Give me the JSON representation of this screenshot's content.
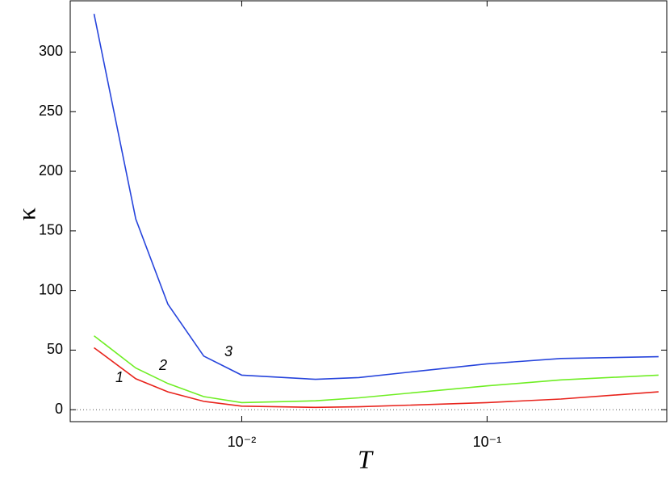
{
  "chart_data": {
    "type": "line",
    "x_label": "T",
    "y_label": "κ",
    "xscale": "log",
    "xlim": [
      0.002,
      0.54
    ],
    "ylim": [
      -10,
      343
    ],
    "xticks": [
      {
        "value": 0.01,
        "label": "10⁻²"
      },
      {
        "value": 0.1,
        "label": "10⁻¹"
      }
    ],
    "yticks": [
      0,
      50,
      100,
      150,
      200,
      250,
      300
    ],
    "x": [
      0.0025,
      0.0037,
      0.005,
      0.007,
      0.01,
      0.02,
      0.03,
      0.1,
      0.2,
      0.5
    ],
    "series": [
      {
        "name": "1",
        "color": "#e8231c",
        "values": [
          52,
          26,
          15,
          7,
          3,
          2,
          2.5,
          6,
          9,
          15
        ]
      },
      {
        "name": "2",
        "color": "#6fee24",
        "values": [
          62,
          35,
          22,
          11,
          6,
          7.5,
          10,
          20,
          25,
          29
        ]
      },
      {
        "name": "3",
        "color": "#2644dc",
        "values": [
          332,
          160,
          88.5,
          45,
          29,
          25.5,
          27,
          38.5,
          43,
          44.5
        ]
      }
    ]
  }
}
